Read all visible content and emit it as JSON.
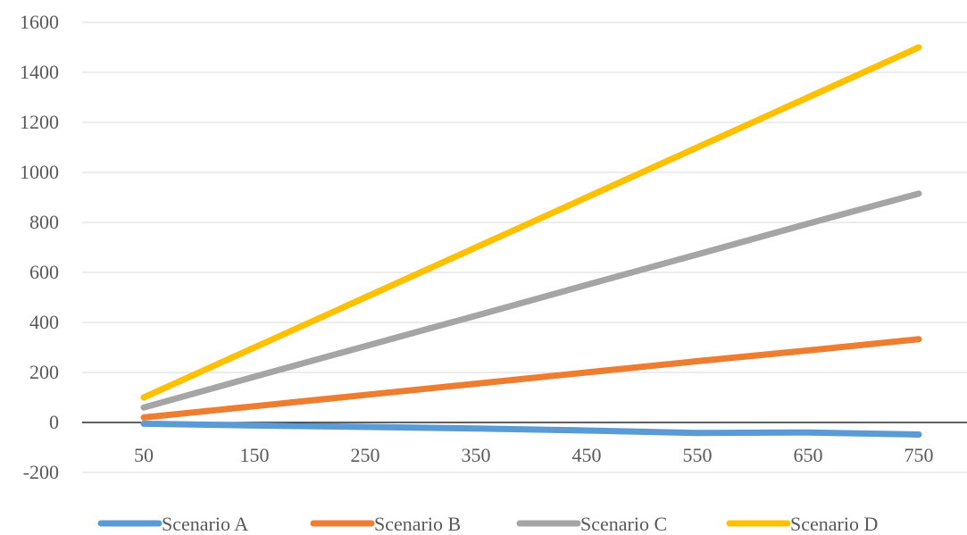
{
  "chart_data": {
    "type": "line",
    "title": "",
    "xlabel": "",
    "ylabel": "",
    "categories": [
      "50",
      "150",
      "250",
      "350",
      "450",
      "550",
      "650",
      "750"
    ],
    "ylim": [
      -200,
      1600
    ],
    "yticks": [
      -200,
      0,
      200,
      400,
      600,
      800,
      1000,
      1200,
      1400,
      1600
    ],
    "ytick_labels": [
      "-200",
      "0",
      "200",
      "400",
      "600",
      "800",
      "1000",
      "1200",
      "1400",
      "1600"
    ],
    "grid": true,
    "legend_position": "bottom",
    "series": [
      {
        "name": "Scenario A",
        "color": "#5B9BD5",
        "values": [
          -5,
          -12,
          -18,
          -24,
          -32,
          -42,
          -40,
          -48
        ]
      },
      {
        "name": "Scenario B",
        "color": "#ED7D31",
        "values": [
          20,
          65,
          110,
          155,
          200,
          245,
          288,
          333
        ]
      },
      {
        "name": "Scenario C",
        "color": "#A5A5A5",
        "values": [
          60,
          183,
          305,
          427,
          550,
          672,
          795,
          915
        ]
      },
      {
        "name": "Scenario D",
        "color": "#FFC000",
        "values": [
          100,
          300,
          500,
          700,
          900,
          1100,
          1300,
          1500
        ]
      }
    ]
  }
}
